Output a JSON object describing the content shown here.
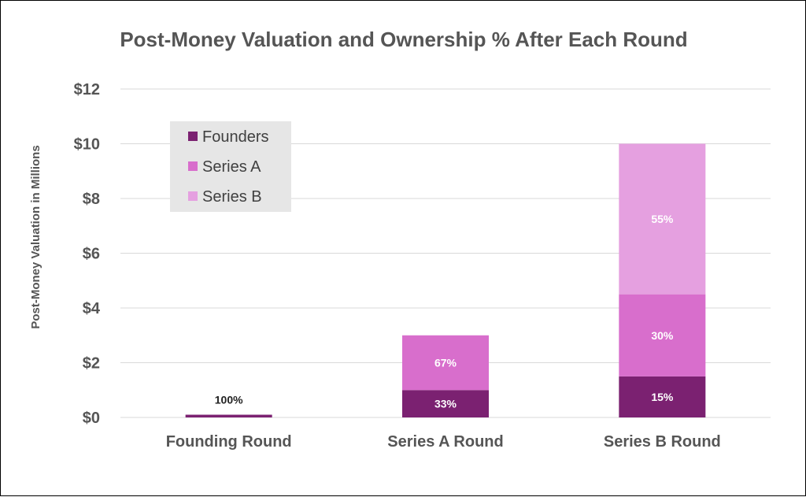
{
  "chart_data": {
    "type": "bar",
    "stacked": true,
    "title": "Post-Money Valuation and Ownership % After Each Round",
    "ylabel": "Post-Money Valuation in Millions",
    "xlabel": "",
    "ylim": [
      0,
      12
    ],
    "yticks": [
      0,
      2,
      4,
      6,
      8,
      10,
      12
    ],
    "ytick_labels": [
      "$0",
      "$2",
      "$4",
      "$6",
      "$8",
      "$10",
      "$12"
    ],
    "categories": [
      "Founding Round",
      "Series A Round",
      "Series B Round"
    ],
    "series": [
      {
        "name": "Founders",
        "color": "#7b2171",
        "values": [
          0.1,
          1.0,
          1.5
        ],
        "labels": [
          "100%",
          "33%",
          "15%"
        ]
      },
      {
        "name": "Series A",
        "color": "#d86ecc",
        "values": [
          0,
          2.0,
          3.0
        ],
        "labels": [
          "",
          "67%",
          "30%"
        ]
      },
      {
        "name": "Series B",
        "color": "#e5a0e0",
        "values": [
          0,
          0,
          5.5
        ],
        "labels": [
          "",
          "",
          "55%"
        ]
      }
    ],
    "grid": true,
    "legend": {
      "placement": "top-left inside",
      "background": "#e6e6e6"
    }
  }
}
